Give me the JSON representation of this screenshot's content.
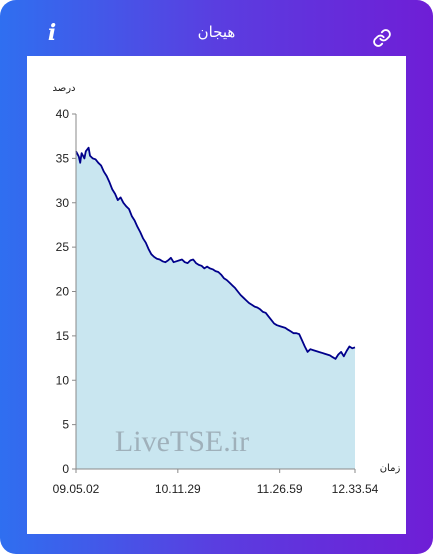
{
  "header": {
    "title": "هیجان",
    "info_icon": "info-icon",
    "link_icon": "link-icon"
  },
  "watermark": "LiveTSE.ir",
  "colors": {
    "frame_start": "#2f6ff0",
    "frame_end": "#6f1ed6",
    "line": "#00008b",
    "area": "#c9e6f0"
  },
  "chart_data": {
    "type": "area",
    "ylabel": "درصد",
    "xlabel": "زمان",
    "ylim": [
      0,
      40
    ],
    "yticks": [
      0,
      5,
      10,
      15,
      20,
      25,
      30,
      35,
      40
    ],
    "xticks": [
      "09.05.02",
      "10.11.29",
      "11.26.59",
      "12.33.54"
    ],
    "grid": false,
    "x_range_index": [
      0,
      100
    ],
    "xtick_index": [
      0,
      36.5,
      73,
      100
    ],
    "points": [
      [
        0,
        35.8
      ],
      [
        1,
        35.2
      ],
      [
        1.5,
        34.5
      ],
      [
        2,
        35.6
      ],
      [
        3,
        35.0
      ],
      [
        3.5,
        35.8
      ],
      [
        4.5,
        36.2
      ],
      [
        5,
        35.3
      ],
      [
        6,
        35.0
      ],
      [
        7,
        34.9
      ],
      [
        8,
        34.5
      ],
      [
        9,
        34.2
      ],
      [
        10,
        33.5
      ],
      [
        11,
        33.0
      ],
      [
        12,
        32.3
      ],
      [
        13,
        31.5
      ],
      [
        14,
        31.0
      ],
      [
        15,
        30.3
      ],
      [
        16,
        30.6
      ],
      [
        17,
        30.0
      ],
      [
        18,
        29.6
      ],
      [
        19,
        29.3
      ],
      [
        20,
        28.5
      ],
      [
        21,
        28.0
      ],
      [
        22,
        27.3
      ],
      [
        23,
        26.7
      ],
      [
        24,
        26.0
      ],
      [
        25,
        25.5
      ],
      [
        26,
        24.8
      ],
      [
        27,
        24.2
      ],
      [
        28,
        23.9
      ],
      [
        29,
        23.7
      ],
      [
        30,
        23.6
      ],
      [
        31,
        23.4
      ],
      [
        32,
        23.3
      ],
      [
        33,
        23.5
      ],
      [
        34,
        23.8
      ],
      [
        35,
        23.3
      ],
      [
        36,
        23.4
      ],
      [
        37,
        23.5
      ],
      [
        38,
        23.6
      ],
      [
        39,
        23.3
      ],
      [
        40,
        23.2
      ],
      [
        41,
        23.5
      ],
      [
        42,
        23.6
      ],
      [
        43,
        23.2
      ],
      [
        44,
        23.0
      ],
      [
        45,
        22.9
      ],
      [
        46,
        22.6
      ],
      [
        47,
        22.8
      ],
      [
        48,
        22.6
      ],
      [
        49,
        22.5
      ],
      [
        50,
        22.3
      ],
      [
        51,
        22.2
      ],
      [
        52,
        21.9
      ],
      [
        53,
        21.5
      ],
      [
        54,
        21.3
      ],
      [
        55,
        21.0
      ],
      [
        56,
        20.7
      ],
      [
        57,
        20.4
      ],
      [
        58,
        20.0
      ],
      [
        59,
        19.6
      ],
      [
        60,
        19.3
      ],
      [
        61,
        19.0
      ],
      [
        62,
        18.7
      ],
      [
        63,
        18.5
      ],
      [
        64,
        18.3
      ],
      [
        65,
        18.2
      ],
      [
        66,
        18.0
      ],
      [
        67,
        17.7
      ],
      [
        68,
        17.6
      ],
      [
        69,
        17.2
      ],
      [
        70,
        16.8
      ],
      [
        71,
        16.4
      ],
      [
        72,
        16.2
      ],
      [
        73,
        16.1
      ],
      [
        74,
        16.0
      ],
      [
        75,
        15.9
      ],
      [
        76,
        15.7
      ],
      [
        77,
        15.5
      ],
      [
        78,
        15.3
      ],
      [
        79,
        15.3
      ],
      [
        80,
        15.2
      ],
      [
        81,
        14.5
      ],
      [
        82,
        13.8
      ],
      [
        83,
        13.2
      ],
      [
        84,
        13.5
      ],
      [
        85,
        13.4
      ],
      [
        86,
        13.3
      ],
      [
        87,
        13.2
      ],
      [
        88,
        13.1
      ],
      [
        89,
        13.0
      ],
      [
        90,
        12.9
      ],
      [
        91,
        12.8
      ],
      [
        92,
        12.6
      ],
      [
        93,
        12.4
      ],
      [
        94,
        12.9
      ],
      [
        95,
        13.2
      ],
      [
        96,
        12.7
      ],
      [
        97,
        13.3
      ],
      [
        98,
        13.8
      ],
      [
        99,
        13.6
      ],
      [
        100,
        13.7
      ]
    ]
  }
}
